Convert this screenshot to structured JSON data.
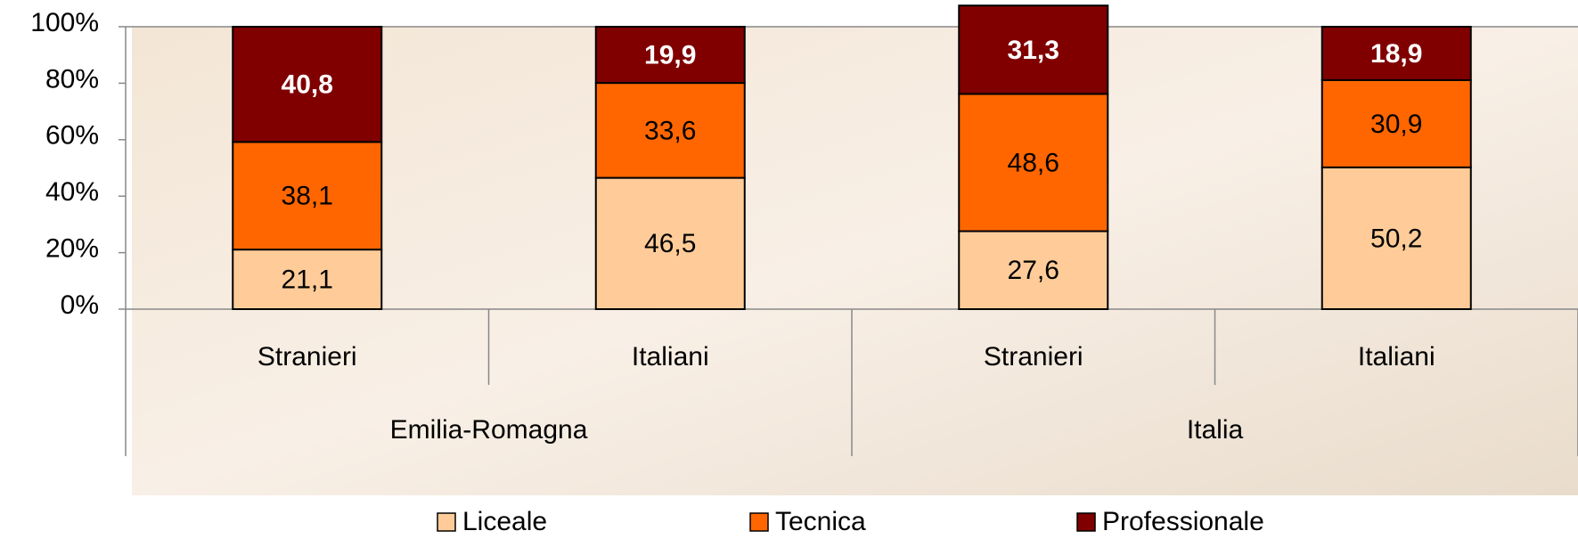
{
  "chart_data": {
    "type": "stacked_bar",
    "categories": [
      "Stranieri",
      "Italiani",
      "Stranieri",
      "Italiani"
    ],
    "groups": [
      "Emilia-Romagna",
      "Italia"
    ],
    "series": [
      {
        "name": "Liceale",
        "color": "#FFCC99",
        "values": [
          21.1,
          46.5,
          27.6,
          50.2
        ],
        "value_labels": [
          "21,1",
          "46,5",
          "27,6",
          "50,2"
        ]
      },
      {
        "name": "Tecnica",
        "color": "#FF6600",
        "values": [
          38.1,
          33.6,
          48.6,
          30.9
        ],
        "value_labels": [
          "38,1",
          "33,6",
          "48,6",
          "30,9"
        ]
      },
      {
        "name": "Professionale",
        "color": "#800000",
        "values": [
          40.8,
          19.9,
          31.3,
          18.9
        ],
        "value_labels": [
          "40,8",
          "19,9",
          "31,3",
          "18,9"
        ]
      }
    ],
    "ylim": [
      0,
      100
    ],
    "yticks": [
      {
        "value": 0,
        "label": "0%"
      },
      {
        "value": 20,
        "label": "20%"
      },
      {
        "value": 40,
        "label": "40%"
      },
      {
        "value": 60,
        "label": "60%"
      },
      {
        "value": 80,
        "label": "80%"
      },
      {
        "value": 100,
        "label": "100%"
      }
    ]
  }
}
